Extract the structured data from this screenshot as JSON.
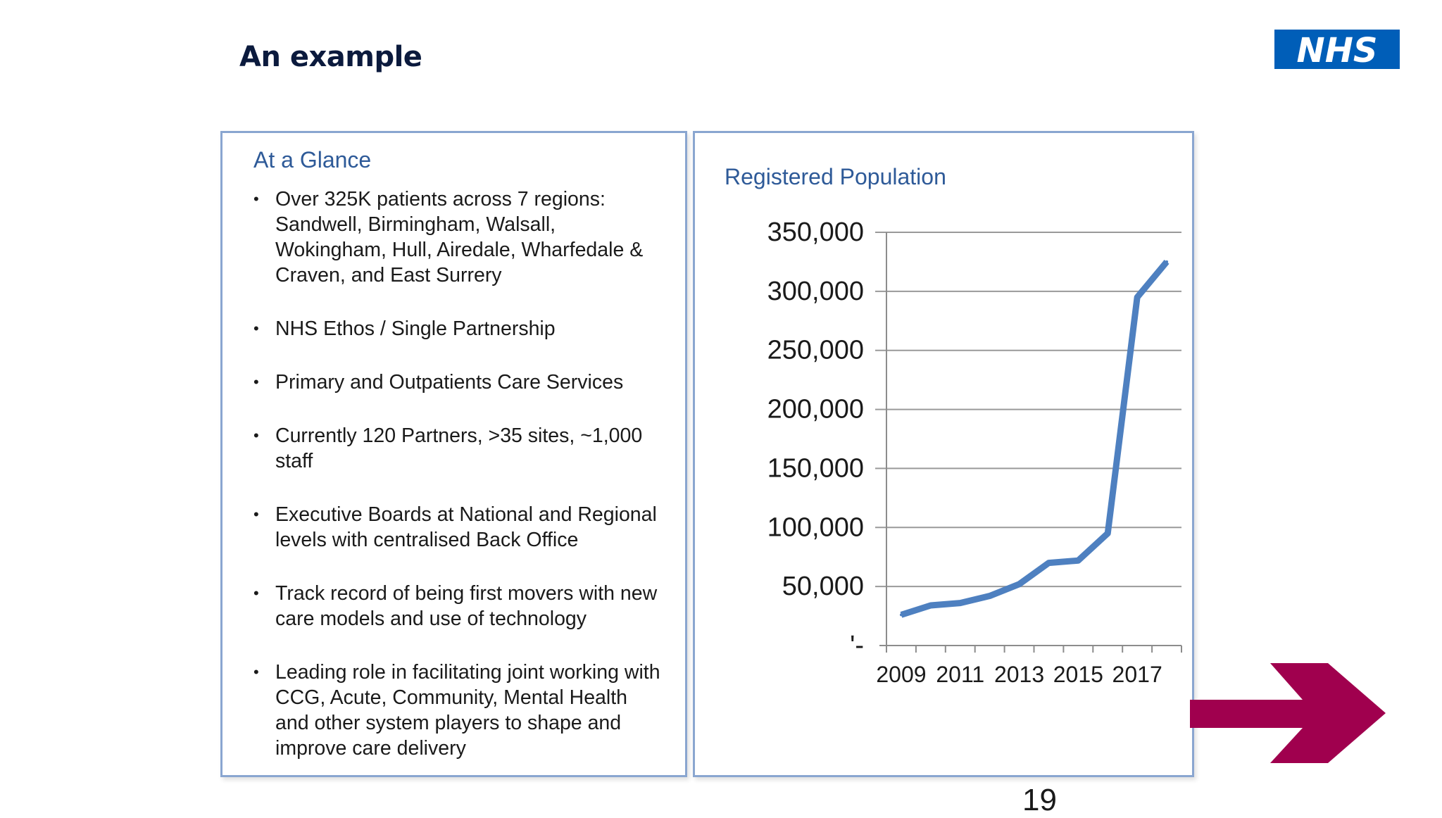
{
  "slide": {
    "title": "An example",
    "logo_text": "NHS",
    "page_number": "19"
  },
  "colors": {
    "title": "#0b1a3d",
    "nhs_blue": "#005eb8",
    "heading": "#2e5a98",
    "line": "#4e80c0",
    "arrow": "#a0004e",
    "panel_border": "#8aa6d0"
  },
  "left_panel": {
    "heading": "At a Glance",
    "bullets": [
      [
        "Over 325K patients across 7 regions:",
        "Sandwell, Birmingham, Walsall,",
        "Wokingham, Hull, Airedale, Wharfedale &",
        "Craven, and East Surrery"
      ],
      [
        "NHS Ethos / Single Partnership"
      ],
      [
        "Primary and Outpatients Care Services"
      ],
      [
        "Currently 120 Partners, >35 sites, ~1,000",
        "staff"
      ],
      [
        "Executive Boards at National and Regional",
        "levels with centralised Back Office"
      ],
      [
        "Track record of being first movers with new",
        "care models and use of technology"
      ],
      [
        "Leading role in facilitating joint working with",
        "CCG, Acute, Community, Mental Health",
        "and other system players to shape and",
        "improve care delivery"
      ]
    ]
  },
  "chart_data": {
    "type": "line",
    "title": "Registered Population",
    "xlabel": "",
    "ylabel": "",
    "x": [
      2009,
      2010,
      2011,
      2012,
      2013,
      2014,
      2015,
      2016,
      2017,
      2018
    ],
    "x_tick_labels": [
      "2009",
      "2011",
      "2013",
      "2015",
      "2017"
    ],
    "y_tick_labels": [
      "'-",
      "50,000",
      "100,000",
      "150,000",
      "200,000",
      "250,000",
      "300,000",
      "350,000"
    ],
    "y_ticks": [
      0,
      50000,
      100000,
      150000,
      200000,
      250000,
      300000,
      350000
    ],
    "ylim": [
      0,
      350000
    ],
    "grid": true,
    "series": [
      {
        "values": [
          26000,
          34000,
          36000,
          42000,
          52000,
          70000,
          72000,
          95000,
          295000,
          325000
        ]
      }
    ]
  },
  "navigation": {
    "next_icon": "arrow-right-icon"
  }
}
